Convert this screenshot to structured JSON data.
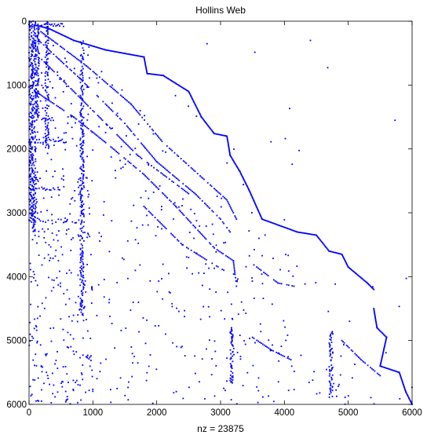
{
  "chart_data": {
    "type": "spy",
    "title": "Hollins Web",
    "xlabel": "nz = 23875",
    "ylabel": "",
    "xlim": [
      0,
      6000
    ],
    "ylim": [
      0,
      6000
    ],
    "y_reversed": true,
    "xticks": [
      0,
      1000,
      2000,
      3000,
      4000,
      5000,
      6000
    ],
    "yticks": [
      0,
      1000,
      2000,
      3000,
      4000,
      5000,
      6000
    ],
    "grid": false,
    "color": "#0000ff",
    "steps": [
      [
        [
          80,
          60
        ],
        [
          300,
          110
        ],
        [
          700,
          300
        ],
        [
          1200,
          450
        ],
        [
          1800,
          560
        ],
        [
          1850,
          820
        ],
        [
          2100,
          850
        ],
        [
          2500,
          1100
        ],
        [
          2700,
          1500
        ],
        [
          2900,
          1760
        ],
        [
          3100,
          1800
        ],
        [
          3150,
          2100
        ],
        [
          3300,
          2350
        ],
        [
          3450,
          2650
        ],
        [
          3650,
          3100
        ],
        [
          4200,
          3300
        ],
        [
          4500,
          3350
        ],
        [
          4700,
          3600
        ],
        [
          4900,
          3650
        ],
        [
          5000,
          3850
        ],
        [
          5300,
          4100
        ],
        [
          5400,
          4200
        ]
      ],
      [
        [
          5400,
          4500
        ],
        [
          5450,
          4800
        ],
        [
          5600,
          4950
        ],
        [
          5500,
          5400
        ],
        [
          5800,
          5500
        ],
        [
          5900,
          5800
        ],
        [
          6000,
          6000
        ]
      ]
    ],
    "diagonals": [
      [
        [
          100,
          100
        ],
        [
          900,
          700
        ],
        [
          1600,
          1300
        ],
        [
          2100,
          1900
        ],
        [
          2600,
          2350
        ],
        [
          3100,
          2800
        ],
        [
          3250,
          3100
        ]
      ],
      [
        [
          150,
          300
        ],
        [
          800,
          900
        ],
        [
          1500,
          1600
        ],
        [
          2000,
          2200
        ],
        [
          2600,
          2700
        ],
        [
          3000,
          3100
        ],
        [
          3150,
          3300
        ]
      ],
      [
        [
          200,
          600
        ],
        [
          1000,
          1400
        ],
        [
          1700,
          2100
        ],
        [
          2500,
          2700
        ]
      ],
      [
        [
          100,
          1100
        ],
        [
          700,
          1500
        ],
        [
          1200,
          1900
        ],
        [
          1800,
          2400
        ],
        [
          2300,
          2900
        ],
        [
          2900,
          3550
        ],
        [
          3200,
          3750
        ],
        [
          3250,
          4150
        ]
      ],
      [
        [
          3500,
          3800
        ],
        [
          3900,
          4100
        ],
        [
          4150,
          4150
        ]
      ],
      [
        [
          1800,
          2900
        ],
        [
          2400,
          3500
        ],
        [
          2800,
          3750
        ],
        [
          3050,
          3900
        ]
      ],
      [
        [
          3500,
          4950
        ],
        [
          3800,
          5150
        ],
        [
          4100,
          5300
        ]
      ],
      [
        [
          4900,
          5000
        ],
        [
          5200,
          5300
        ],
        [
          5500,
          5550
        ]
      ]
    ],
    "column_clusters": [
      [
        0,
        0,
        3100
      ],
      [
        50,
        0,
        3300
      ],
      [
        100,
        100,
        1500
      ],
      [
        250,
        0,
        2000
      ],
      [
        800,
        300,
        4700
      ],
      [
        3150,
        4800,
        5700
      ],
      [
        4700,
        4850,
        5900
      ]
    ],
    "row_clusters": [
      [
        30,
        0,
        600
      ],
      [
        1000,
        0,
        300
      ],
      [
        1500,
        0,
        400
      ],
      [
        1850,
        0,
        600
      ],
      [
        2600,
        0,
        500
      ],
      [
        3100,
        0,
        800
      ]
    ],
    "scatter_count": 650
  }
}
